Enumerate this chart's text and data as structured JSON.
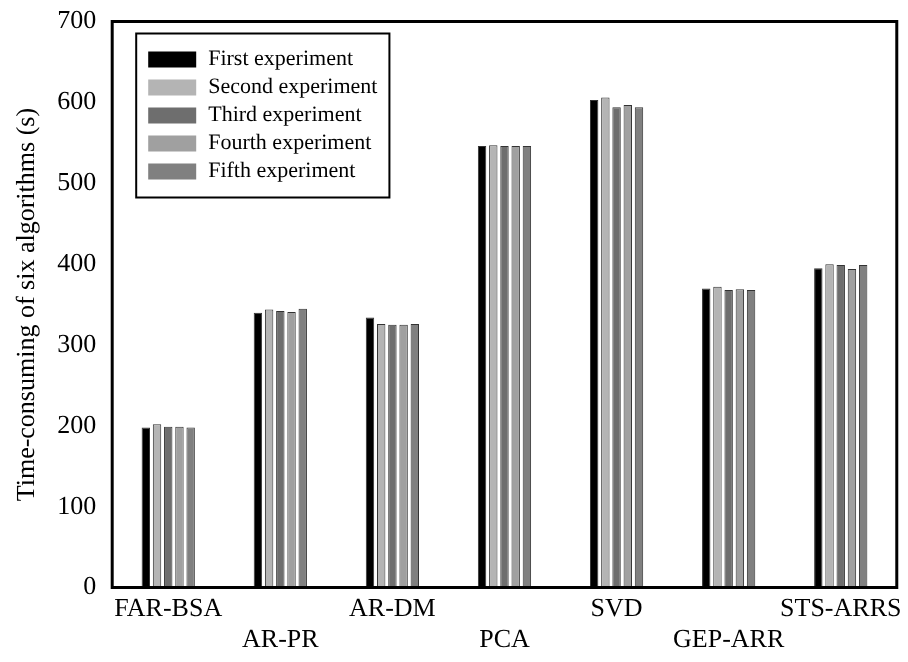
{
  "chart_data": {
    "type": "bar",
    "ylabel": "Time-consuming of six algorithms (s)",
    "categories": [
      "FAR-BSA",
      "AR-PR",
      "AR-DM",
      "PCA",
      "SVD",
      "GEP-ARR",
      "STS-ARRS"
    ],
    "series": [
      {
        "name": "First experiment",
        "color": "#000000",
        "values": [
          198,
          340,
          334,
          546,
          603,
          370,
          395
        ]
      },
      {
        "name": "Second experiment",
        "color": "#b4b4b4",
        "values": [
          202,
          344,
          326,
          547,
          606,
          372,
          400
        ]
      },
      {
        "name": "Third experiment",
        "color": "#6e6e6e",
        "values": [
          199,
          342,
          325,
          546,
          594,
          368,
          399
        ]
      },
      {
        "name": "Fourth experiment",
        "color": "#a0a0a0",
        "values": [
          199,
          341,
          325,
          546,
          597,
          369,
          394
        ]
      },
      {
        "name": "Fifth experiment",
        "color": "#808080",
        "values": [
          198,
          345,
          326,
          546,
          594,
          368,
          399
        ]
      }
    ],
    "ylim": [
      0,
      700
    ],
    "yticks": [
      0,
      100,
      200,
      300,
      400,
      500,
      600,
      700
    ],
    "grid": false,
    "legend": "top left"
  }
}
